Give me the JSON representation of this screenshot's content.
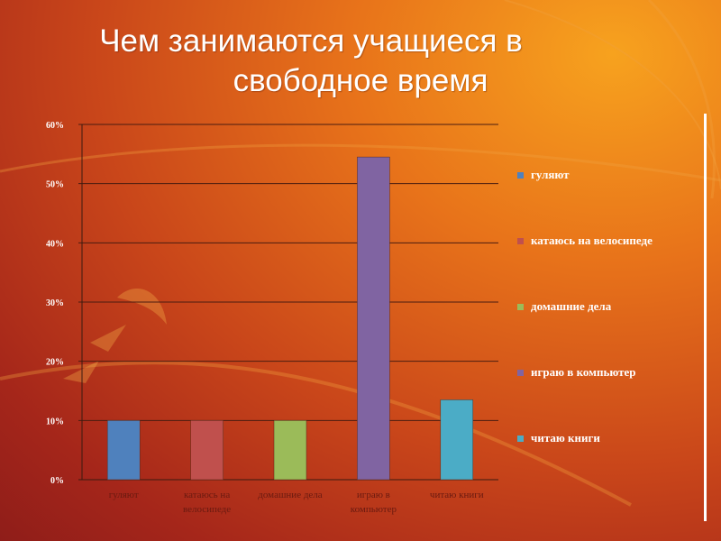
{
  "slide": {
    "title_line1": "Чем занимаются учащиеся в",
    "title_line2": "свободное время"
  },
  "chart_data": {
    "type": "bar",
    "categories": [
      "гуляют",
      "катаюсь на велосипеде",
      "домашние дела",
      "играю в компьютер",
      "читаю книги"
    ],
    "category_labels": [
      [
        "гуляют"
      ],
      [
        "катаюсь на",
        "велосипеде"
      ],
      [
        "домашние дела"
      ],
      [
        "играю в",
        "компьютер"
      ],
      [
        "читаю книги"
      ]
    ],
    "values": [
      0.1,
      0.1,
      0.1,
      0.545,
      0.135
    ],
    "colors": [
      "#4f81bd",
      "#c0504d",
      "#9bbb59",
      "#8064a2",
      "#4bacc6"
    ],
    "ylim": [
      0,
      0.6
    ],
    "yticks": [
      "0%",
      "10%",
      "20%",
      "30%",
      "40%",
      "50%",
      "60%"
    ],
    "grid": true,
    "legend_position": "right",
    "title": "",
    "xlabel": "",
    "ylabel": ""
  }
}
